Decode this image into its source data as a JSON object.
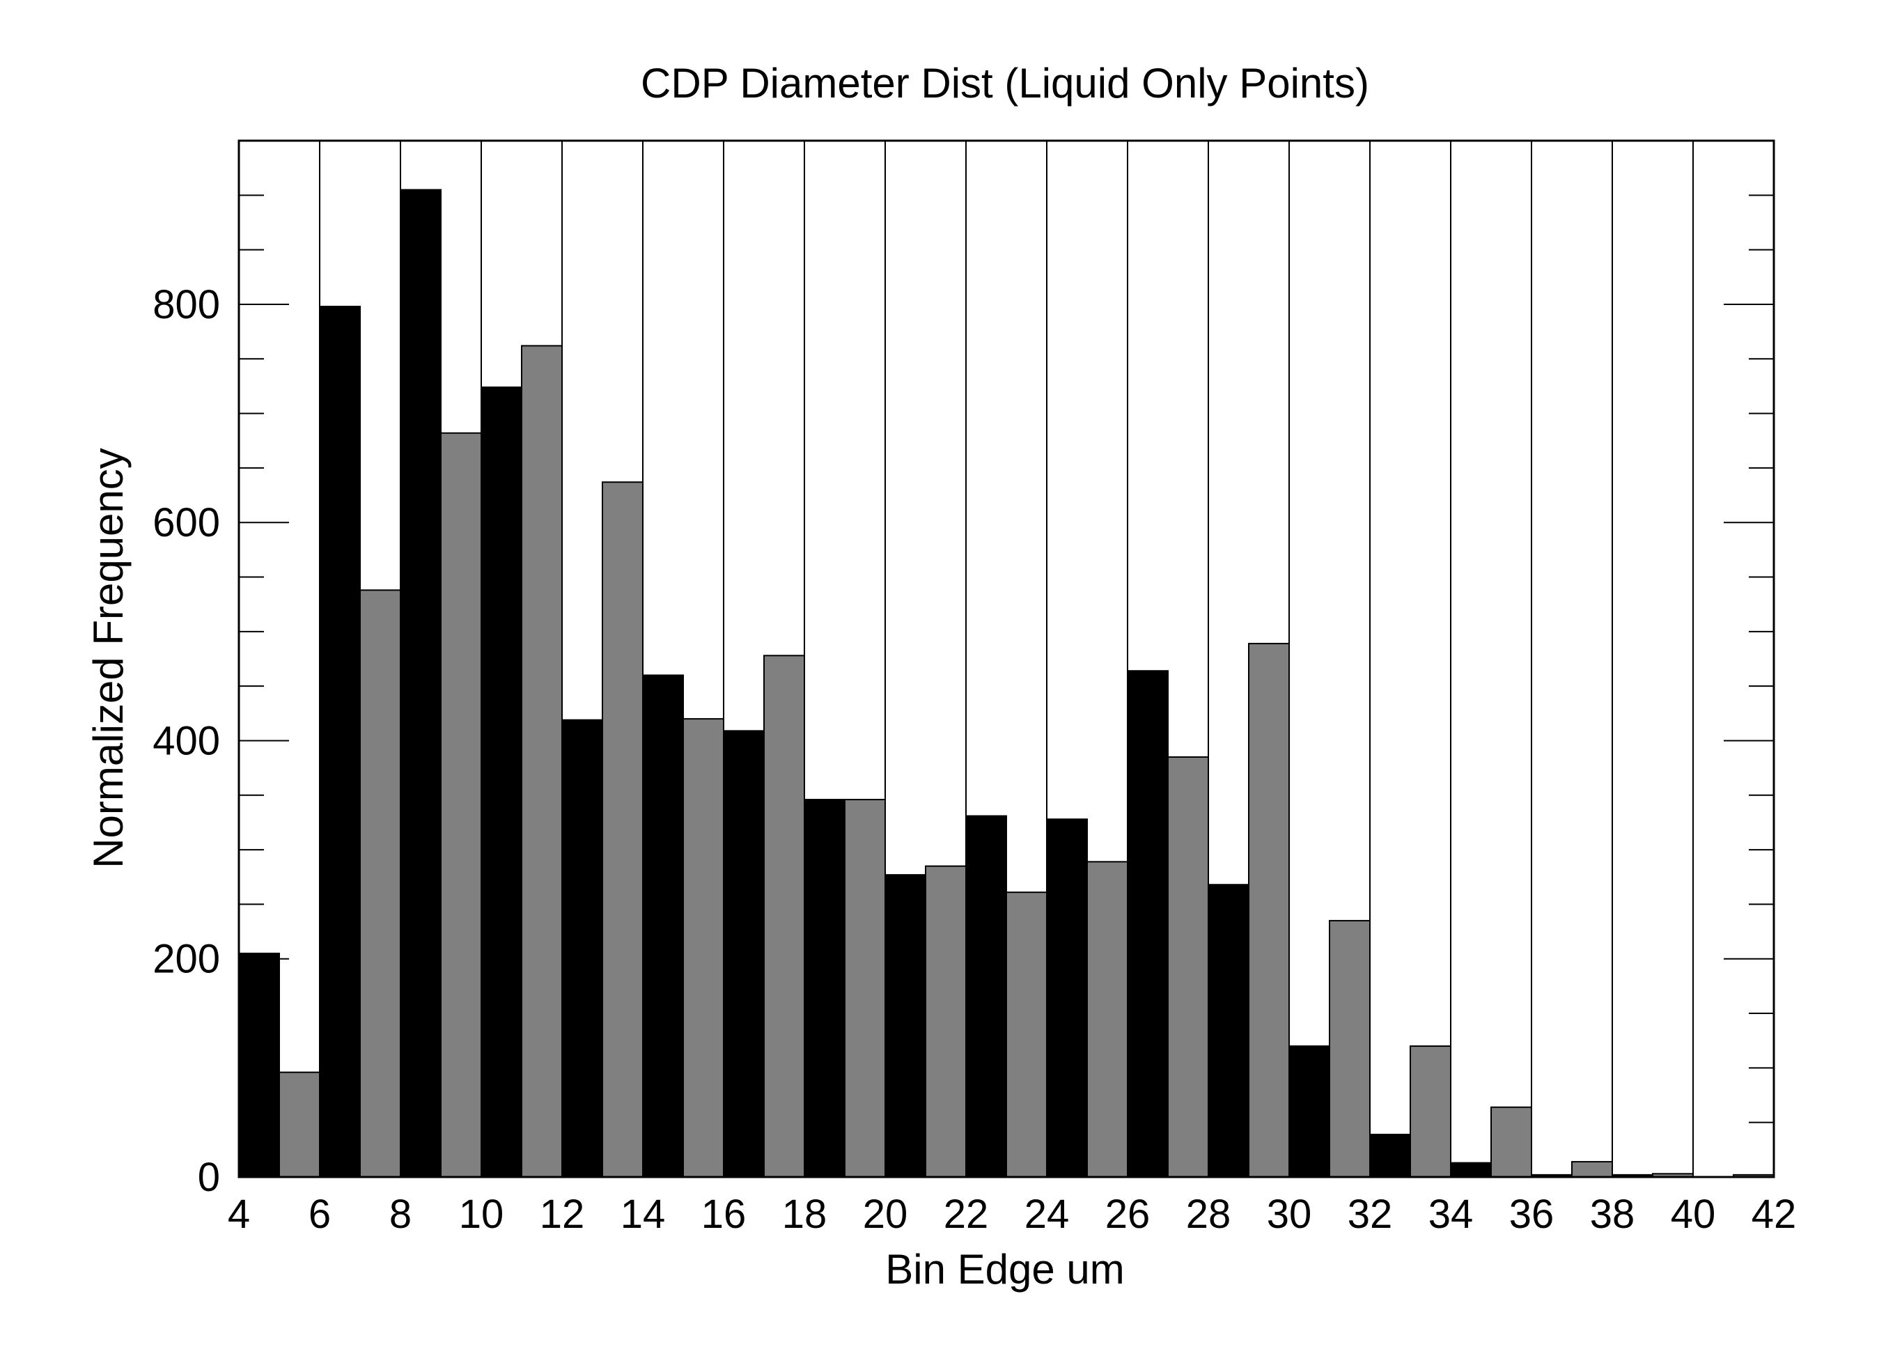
{
  "chart_data": {
    "type": "bar",
    "title": "CDP Diameter Dist (Liquid Only Points)",
    "xlabel": "Bin Edge um",
    "ylabel": "Normalized Frequency",
    "xlim": [
      4,
      42
    ],
    "ylim": [
      0,
      950
    ],
    "x_ticks": [
      "4",
      "6",
      "8",
      "10",
      "12",
      "14",
      "16",
      "18",
      "20",
      "22",
      "24",
      "26",
      "28",
      "30",
      "32",
      "34",
      "36",
      "38",
      "40",
      "42"
    ],
    "y_ticks": [
      "0",
      "200",
      "400",
      "600",
      "800"
    ],
    "y_minor_step": 50,
    "vertical_grid_at": [
      6,
      8,
      10,
      12,
      14,
      16,
      18,
      20,
      22,
      24,
      26,
      28,
      30,
      32,
      34,
      36,
      38,
      40
    ],
    "bin_width": 1,
    "bin_starts": [
      4,
      5,
      6,
      7,
      8,
      9,
      10,
      11,
      12,
      13,
      14,
      15,
      16,
      17,
      18,
      19,
      20,
      21,
      22,
      23,
      24,
      25,
      26,
      27,
      28,
      29,
      30,
      31,
      32,
      33,
      34,
      35,
      36,
      37,
      38,
      39,
      40,
      41
    ],
    "values": [
      205,
      96,
      798,
      538,
      905,
      682,
      724,
      762,
      419,
      637,
      460,
      420,
      409,
      478,
      346,
      346,
      277,
      285,
      331,
      261,
      328,
      289,
      464,
      385,
      268,
      489,
      120,
      235,
      39,
      120,
      13,
      64,
      2,
      14,
      2,
      3,
      0,
      2
    ],
    "bar_colors": [
      "#000000",
      "#808080"
    ],
    "grid": true
  }
}
